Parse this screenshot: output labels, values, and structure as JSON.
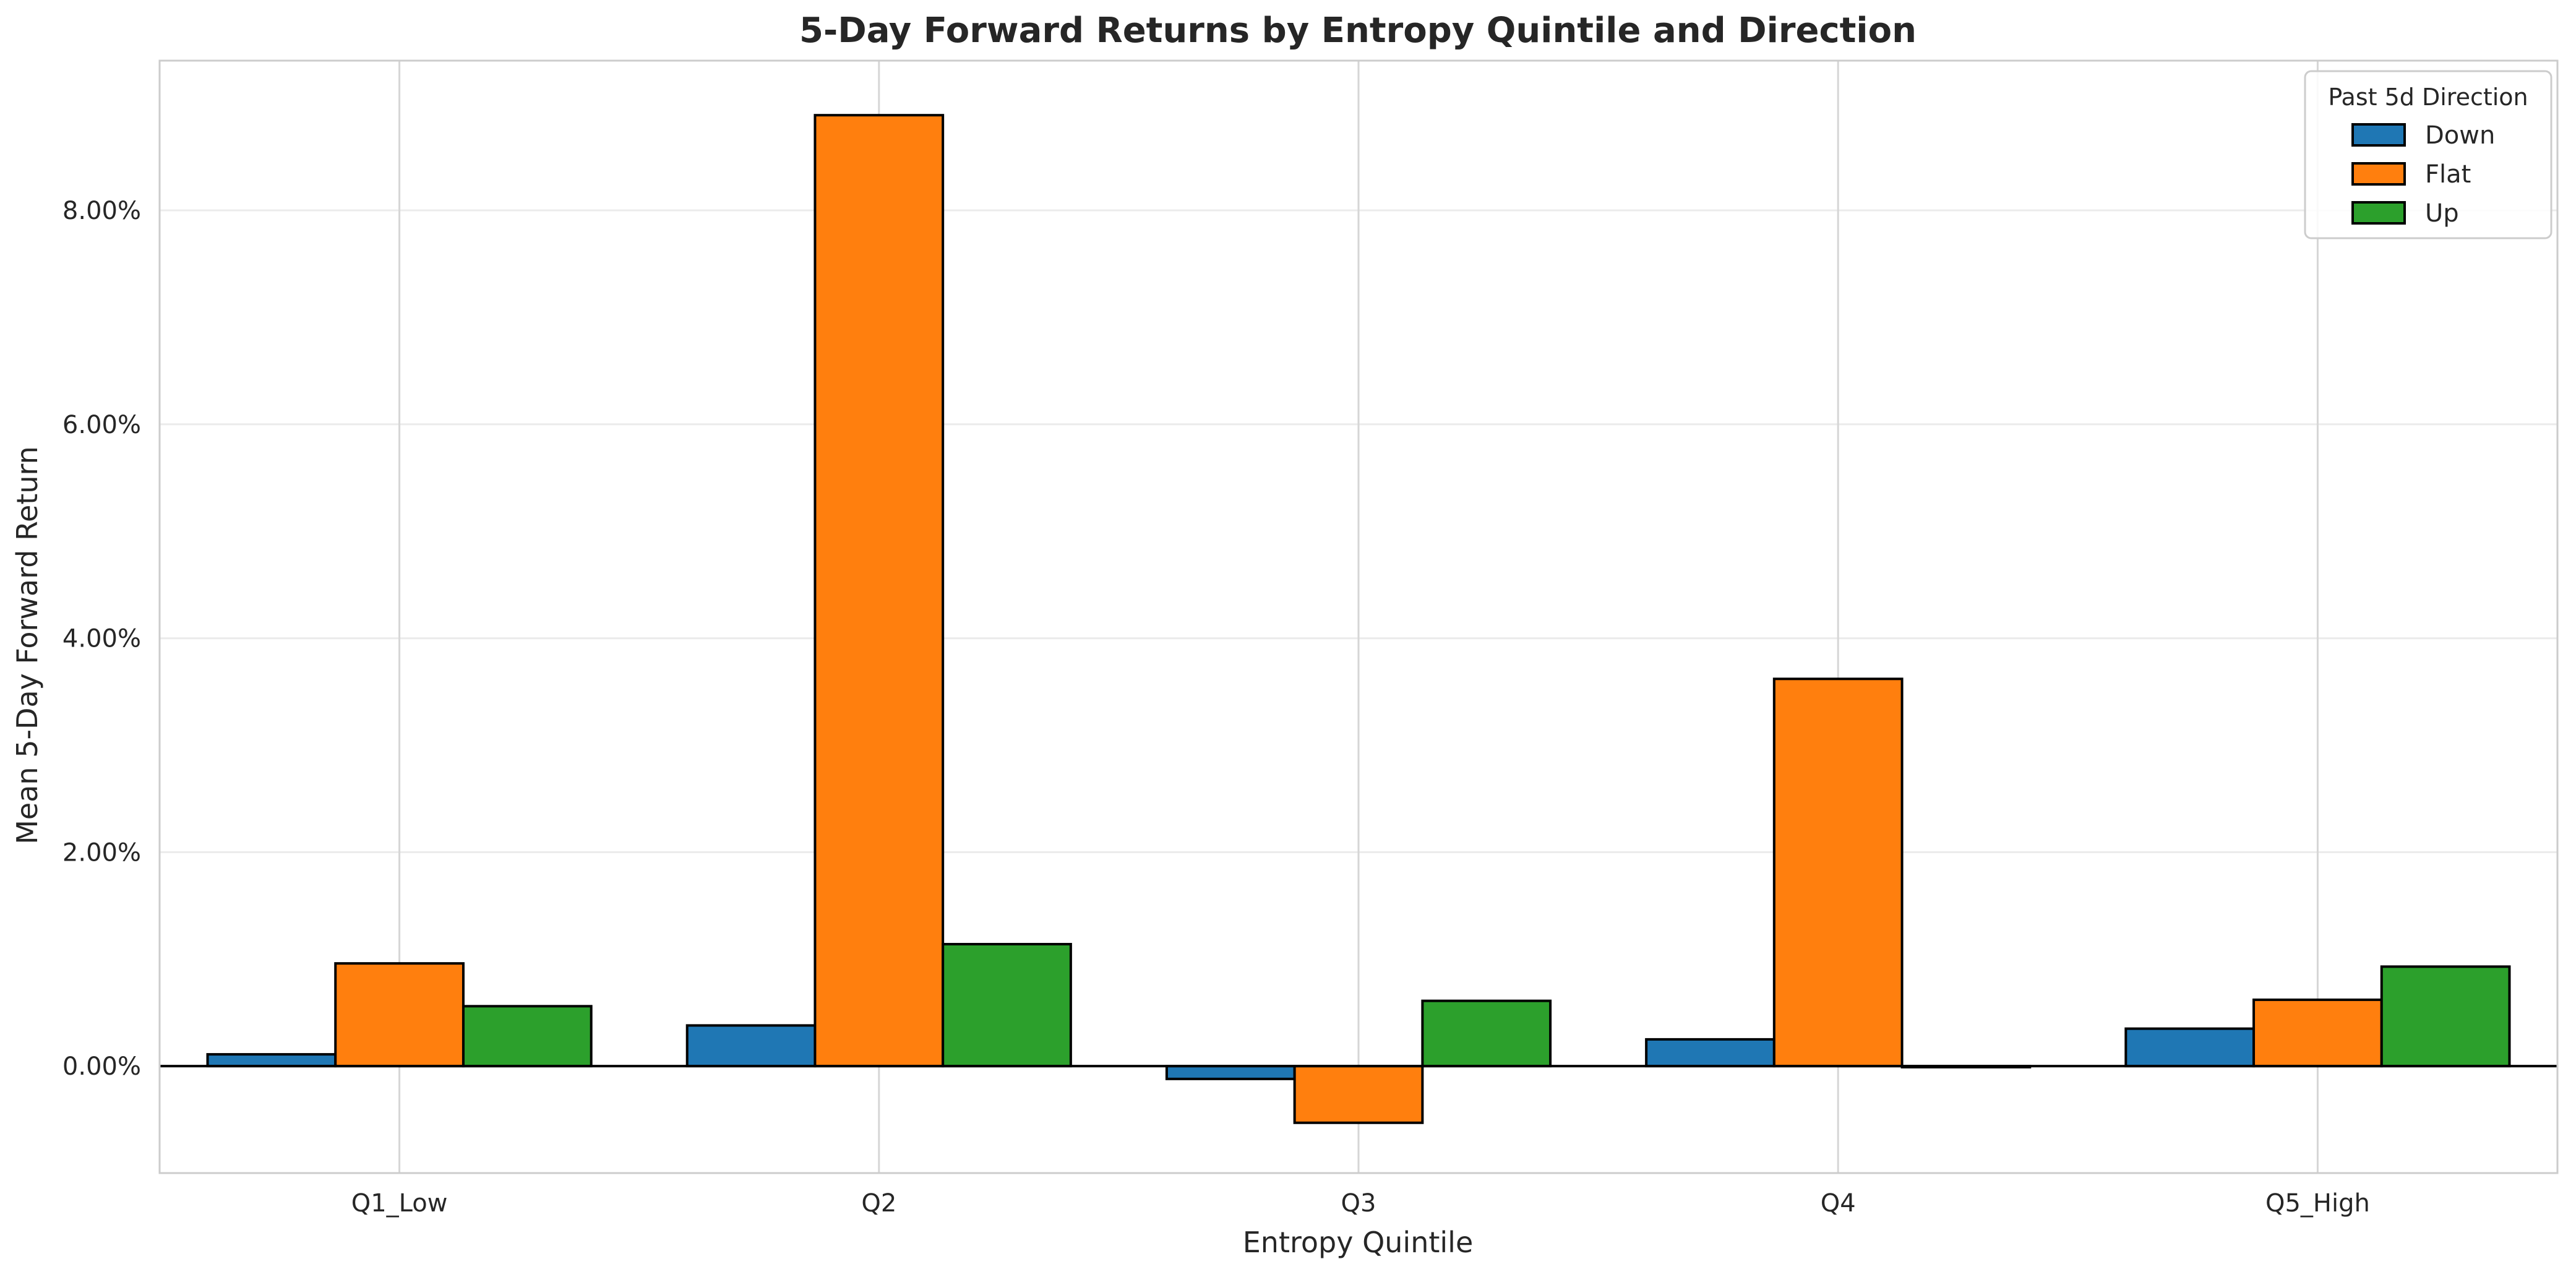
{
  "chart_data": {
    "type": "bar",
    "title": "5-Day Forward Returns by Entropy Quintile and Direction",
    "xlabel": "Entropy Quintile",
    "ylabel": "Mean 5-Day Forward Return",
    "categories": [
      "Q1_Low",
      "Q2",
      "Q3",
      "Q4",
      "Q5_High"
    ],
    "series": [
      {
        "name": "Down",
        "color": "#1f77b4",
        "values": [
          0.11,
          0.38,
          -0.12,
          0.25,
          0.35
        ]
      },
      {
        "name": "Flat",
        "color": "#ff7f0e",
        "values": [
          0.96,
          8.89,
          -0.53,
          3.62,
          0.62
        ]
      },
      {
        "name": "Up",
        "color": "#2ca02c",
        "values": [
          0.56,
          1.14,
          0.61,
          -0.01,
          0.93
        ]
      }
    ],
    "ylim": [
      -1.0,
      9.4
    ],
    "yticks": [
      0,
      2,
      4,
      6,
      8
    ],
    "ytick_labels": [
      "0.00%",
      "2.00%",
      "4.00%",
      "6.00%",
      "8.00%"
    ],
    "value_unit": "%",
    "legend": {
      "title": "Past 5d Direction",
      "position": "top-right"
    },
    "grid": true
  }
}
